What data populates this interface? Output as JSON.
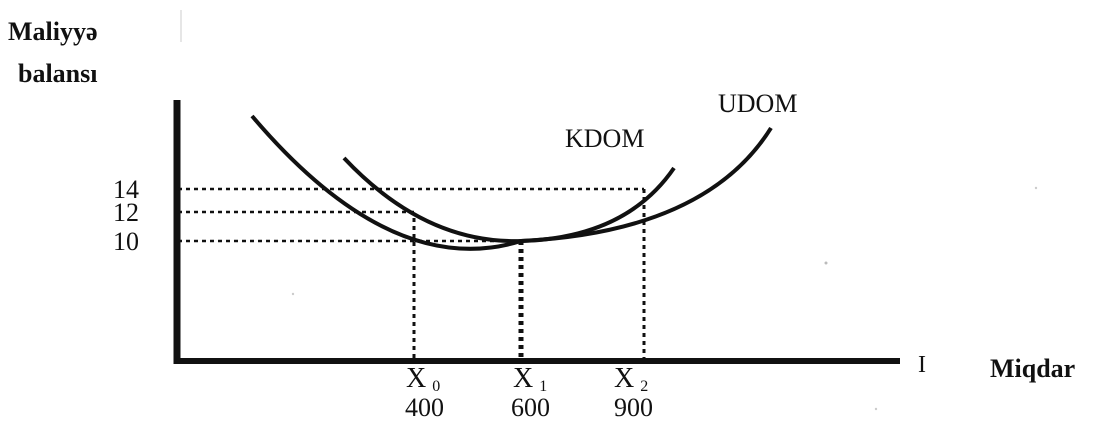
{
  "y_axis_label_line1": "Maliyyə",
  "y_axis_label_line2": "balansı",
  "x_axis_label": "Miqdar",
  "x_axis_stray_mark": "I",
  "curves": [
    {
      "label": "KDOM"
    },
    {
      "label": "UDOM"
    }
  ],
  "y_ticks": [
    "14",
    "12",
    "10"
  ],
  "x_ticks": [
    {
      "symbol": "X",
      "sub": "0",
      "value": "400"
    },
    {
      "symbol": "X",
      "sub": "1",
      "value": "600"
    },
    {
      "symbol": "X",
      "sub": "2",
      "value": "900"
    }
  ],
  "colors": {
    "ink": "#111111",
    "background": "#ffffff"
  }
}
